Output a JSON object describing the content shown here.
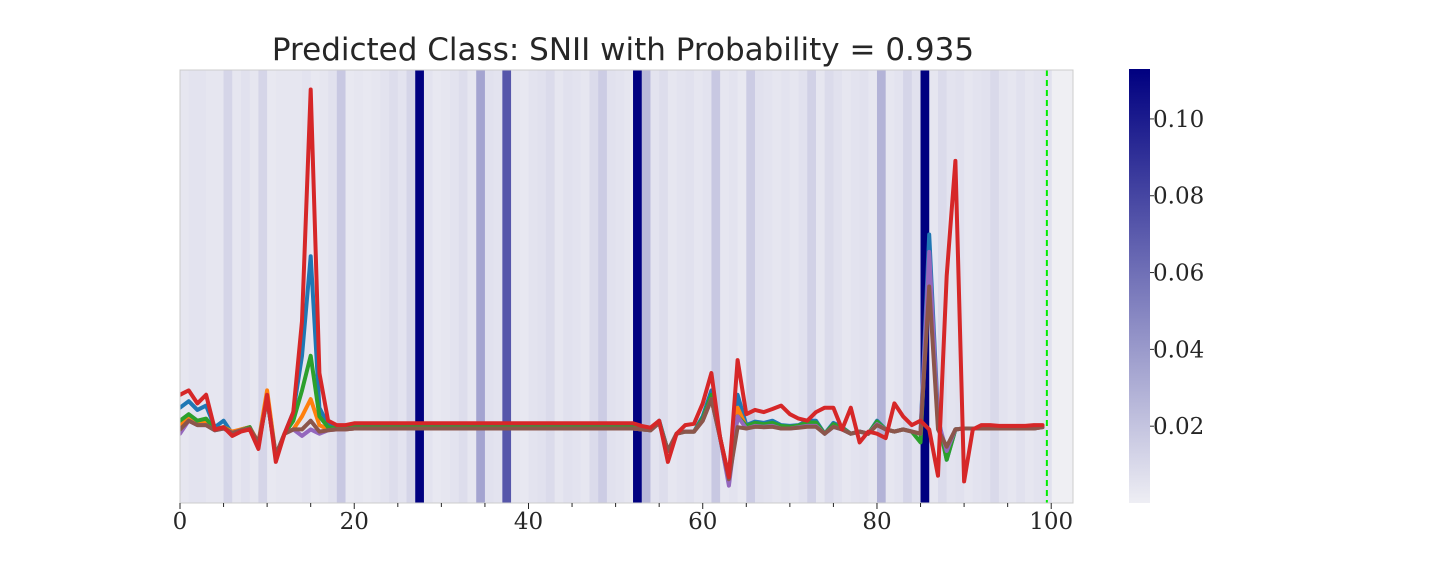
{
  "chart_data": {
    "type": "line",
    "title": "Predicted Class: SNII with Probability = 0.935",
    "xlabel": "",
    "ylabel": "",
    "xlim": [
      0,
      102.5
    ],
    "ylim": [
      0,
      1
    ],
    "xticks": [
      0,
      20,
      40,
      60,
      80,
      100
    ],
    "x_minor_ticks": [
      5,
      10,
      15,
      25,
      30,
      35,
      45,
      50,
      55,
      65,
      70,
      75,
      85,
      90,
      95
    ],
    "y_axis_visible": false,
    "grid": false,
    "legend": "none",
    "marker_line": {
      "x": 99.5,
      "color": "#00ee00",
      "style": "dashed"
    },
    "colors": {
      "plot_background": "#efeff3",
      "colormap_low": "#eeeef4",
      "colormap_high": "#000080",
      "series": [
        "#1f77b4",
        "#ff7f0e",
        "#2ca02c",
        "#9467bd",
        "#8c564b",
        "#d62728"
      ]
    },
    "colorbar": {
      "min": 0.0,
      "max": 0.113,
      "ticks": [
        0.02,
        0.04,
        0.06,
        0.08,
        0.1
      ],
      "tick_labels": [
        "0.02",
        "0.04",
        "0.06",
        "0.08",
        "0.10"
      ]
    },
    "attention": [
      0.004,
      0.005,
      0.005,
      0.004,
      0.004,
      0.012,
      0.004,
      0.006,
      0.004,
      0.012,
      0.003,
      0.004,
      0.004,
      0.004,
      0.005,
      0.003,
      0.004,
      0.006,
      0.018,
      0.003,
      0.004,
      0.003,
      0.004,
      0.005,
      0.008,
      0.005,
      0.012,
      0.113,
      0.005,
      0.003,
      0.004,
      0.005,
      0.008,
      0.004,
      0.035,
      0.006,
      0.005,
      0.072,
      0.004,
      0.003,
      0.005,
      0.006,
      0.009,
      0.004,
      0.006,
      0.005,
      0.004,
      0.009,
      0.016,
      0.006,
      0.005,
      0.004,
      0.113,
      0.025,
      0.005,
      0.008,
      0.004,
      0.005,
      0.006,
      0.004,
      0.005,
      0.018,
      0.004,
      0.005,
      0.003,
      0.016,
      0.006,
      0.005,
      0.004,
      0.005,
      0.004,
      0.006,
      0.014,
      0.004,
      0.009,
      0.006,
      0.004,
      0.005,
      0.006,
      0.004,
      0.028,
      0.004,
      0.005,
      0.012,
      0.006,
      0.113,
      0.004,
      0.009,
      0.005,
      0.006,
      0.004,
      0.005,
      0.006,
      0.01,
      0.005,
      0.004,
      0.006,
      0.004,
      0.005,
      0.006
    ],
    "series": [
      {
        "values": [
          0.22,
          0.235,
          0.215,
          0.225,
          0.175,
          0.19,
          0.16,
          0.17,
          0.175,
          0.13,
          0.25,
          0.11,
          0.16,
          0.21,
          0.34,
          0.57,
          0.22,
          0.18,
          0.175,
          0.175,
          0.178,
          0.178,
          0.178,
          0.178,
          0.178,
          0.178,
          0.178,
          0.178,
          0.178,
          0.178,
          0.178,
          0.178,
          0.178,
          0.178,
          0.178,
          0.178,
          0.178,
          0.178,
          0.178,
          0.178,
          0.178,
          0.178,
          0.178,
          0.178,
          0.178,
          0.178,
          0.178,
          0.178,
          0.178,
          0.178,
          0.178,
          0.178,
          0.178,
          0.172,
          0.168,
          0.19,
          0.12,
          0.16,
          0.165,
          0.165,
          0.2,
          0.26,
          0.15,
          0.045,
          0.25,
          0.18,
          0.188,
          0.185,
          0.19,
          0.18,
          0.178,
          0.18,
          0.19,
          0.19,
          0.16,
          0.185,
          0.175,
          0.16,
          0.165,
          0.16,
          0.19,
          0.17,
          0.165,
          0.17,
          0.165,
          0.16,
          0.62,
          0.2,
          0.1,
          0.17,
          0.172,
          0.172,
          0.172,
          0.172,
          0.172,
          0.172,
          0.172,
          0.172,
          0.172,
          0.178
        ]
      },
      {
        "values": [
          0.18,
          0.195,
          0.185,
          0.185,
          0.17,
          0.175,
          0.165,
          0.17,
          0.175,
          0.14,
          0.26,
          0.11,
          0.16,
          0.17,
          0.2,
          0.24,
          0.18,
          0.17,
          0.17,
          0.17,
          0.172,
          0.172,
          0.172,
          0.172,
          0.172,
          0.172,
          0.172,
          0.172,
          0.172,
          0.172,
          0.172,
          0.172,
          0.172,
          0.172,
          0.172,
          0.172,
          0.172,
          0.172,
          0.172,
          0.172,
          0.172,
          0.172,
          0.172,
          0.172,
          0.172,
          0.172,
          0.172,
          0.172,
          0.172,
          0.172,
          0.172,
          0.172,
          0.172,
          0.17,
          0.168,
          0.185,
          0.12,
          0.16,
          0.165,
          0.165,
          0.19,
          0.24,
          0.15,
          0.06,
          0.22,
          0.175,
          0.182,
          0.18,
          0.18,
          0.175,
          0.175,
          0.178,
          0.182,
          0.182,
          0.16,
          0.18,
          0.172,
          0.16,
          0.165,
          0.16,
          0.185,
          0.17,
          0.165,
          0.17,
          0.165,
          0.16,
          0.52,
          0.18,
          0.12,
          0.17,
          0.172,
          0.172,
          0.172,
          0.172,
          0.172,
          0.172,
          0.172,
          0.172,
          0.172,
          0.175
        ]
      },
      {
        "values": [
          0.19,
          0.205,
          0.19,
          0.195,
          0.17,
          0.175,
          0.16,
          0.168,
          0.175,
          0.135,
          0.24,
          0.11,
          0.16,
          0.19,
          0.26,
          0.34,
          0.2,
          0.175,
          0.172,
          0.172,
          0.175,
          0.175,
          0.175,
          0.175,
          0.175,
          0.175,
          0.175,
          0.175,
          0.175,
          0.175,
          0.175,
          0.175,
          0.175,
          0.175,
          0.175,
          0.175,
          0.175,
          0.175,
          0.175,
          0.175,
          0.175,
          0.175,
          0.175,
          0.175,
          0.175,
          0.175,
          0.175,
          0.175,
          0.175,
          0.175,
          0.175,
          0.175,
          0.175,
          0.17,
          0.168,
          0.188,
          0.12,
          0.16,
          0.165,
          0.165,
          0.195,
          0.25,
          0.15,
          0.05,
          0.2,
          0.178,
          0.185,
          0.182,
          0.185,
          0.178,
          0.176,
          0.179,
          0.186,
          0.186,
          0.16,
          0.182,
          0.173,
          0.16,
          0.165,
          0.16,
          0.188,
          0.17,
          0.165,
          0.17,
          0.165,
          0.14,
          0.55,
          0.19,
          0.1,
          0.17,
          0.172,
          0.172,
          0.172,
          0.172,
          0.172,
          0.172,
          0.172,
          0.172,
          0.172,
          0.176
        ]
      },
      {
        "values": [
          0.16,
          0.19,
          0.18,
          0.18,
          0.168,
          0.172,
          0.162,
          0.168,
          0.172,
          0.14,
          0.24,
          0.11,
          0.16,
          0.17,
          0.155,
          0.17,
          0.16,
          0.168,
          0.17,
          0.17,
          0.172,
          0.172,
          0.172,
          0.172,
          0.172,
          0.172,
          0.172,
          0.172,
          0.172,
          0.172,
          0.172,
          0.172,
          0.172,
          0.172,
          0.172,
          0.172,
          0.172,
          0.172,
          0.172,
          0.172,
          0.172,
          0.172,
          0.172,
          0.172,
          0.172,
          0.172,
          0.172,
          0.172,
          0.172,
          0.172,
          0.172,
          0.172,
          0.172,
          0.17,
          0.168,
          0.185,
          0.12,
          0.16,
          0.165,
          0.165,
          0.19,
          0.24,
          0.15,
          0.04,
          0.2,
          0.172,
          0.178,
          0.176,
          0.178,
          0.172,
          0.172,
          0.175,
          0.178,
          0.178,
          0.16,
          0.176,
          0.17,
          0.16,
          0.165,
          0.16,
          0.182,
          0.17,
          0.165,
          0.17,
          0.165,
          0.16,
          0.58,
          0.19,
          0.12,
          0.17,
          0.172,
          0.172,
          0.172,
          0.172,
          0.172,
          0.172,
          0.172,
          0.172,
          0.172,
          0.175
        ]
      },
      {
        "values": [
          0.17,
          0.19,
          0.18,
          0.18,
          0.168,
          0.172,
          0.162,
          0.168,
          0.172,
          0.14,
          0.24,
          0.11,
          0.16,
          0.17,
          0.17,
          0.19,
          0.165,
          0.168,
          0.17,
          0.17,
          0.172,
          0.172,
          0.172,
          0.172,
          0.172,
          0.172,
          0.172,
          0.172,
          0.172,
          0.172,
          0.172,
          0.172,
          0.172,
          0.172,
          0.172,
          0.172,
          0.172,
          0.172,
          0.172,
          0.172,
          0.172,
          0.172,
          0.172,
          0.172,
          0.172,
          0.172,
          0.172,
          0.172,
          0.172,
          0.172,
          0.172,
          0.172,
          0.172,
          0.17,
          0.168,
          0.185,
          0.12,
          0.16,
          0.165,
          0.165,
          0.19,
          0.24,
          0.15,
          0.055,
          0.175,
          0.172,
          0.176,
          0.175,
          0.176,
          0.172,
          0.172,
          0.174,
          0.176,
          0.176,
          0.16,
          0.176,
          0.17,
          0.16,
          0.165,
          0.16,
          0.18,
          0.17,
          0.165,
          0.17,
          0.165,
          0.16,
          0.5,
          0.17,
          0.13,
          0.17,
          0.172,
          0.172,
          0.172,
          0.172,
          0.172,
          0.172,
          0.172,
          0.172,
          0.172,
          0.175
        ]
      },
      {
        "values": [
          0.25,
          0.26,
          0.23,
          0.25,
          0.17,
          0.175,
          0.155,
          0.165,
          0.17,
          0.125,
          0.25,
          0.095,
          0.16,
          0.21,
          0.42,
          0.955,
          0.3,
          0.19,
          0.18,
          0.18,
          0.184,
          0.184,
          0.184,
          0.184,
          0.184,
          0.184,
          0.184,
          0.184,
          0.184,
          0.184,
          0.184,
          0.184,
          0.184,
          0.184,
          0.184,
          0.184,
          0.184,
          0.184,
          0.184,
          0.184,
          0.184,
          0.184,
          0.184,
          0.184,
          0.184,
          0.184,
          0.184,
          0.184,
          0.184,
          0.184,
          0.184,
          0.184,
          0.184,
          0.178,
          0.174,
          0.19,
          0.095,
          0.16,
          0.18,
          0.183,
          0.23,
          0.3,
          0.15,
          0.06,
          0.33,
          0.205,
          0.215,
          0.21,
          0.217,
          0.225,
          0.205,
          0.195,
          0.19,
          0.21,
          0.22,
          0.22,
          0.17,
          0.22,
          0.14,
          0.165,
          0.16,
          0.15,
          0.23,
          0.2,
          0.18,
          0.19,
          0.17,
          0.063,
          0.525,
          0.79,
          0.05,
          0.17,
          0.18,
          0.18,
          0.178,
          0.178,
          0.178,
          0.178,
          0.18,
          0.18
        ]
      }
    ]
  }
}
